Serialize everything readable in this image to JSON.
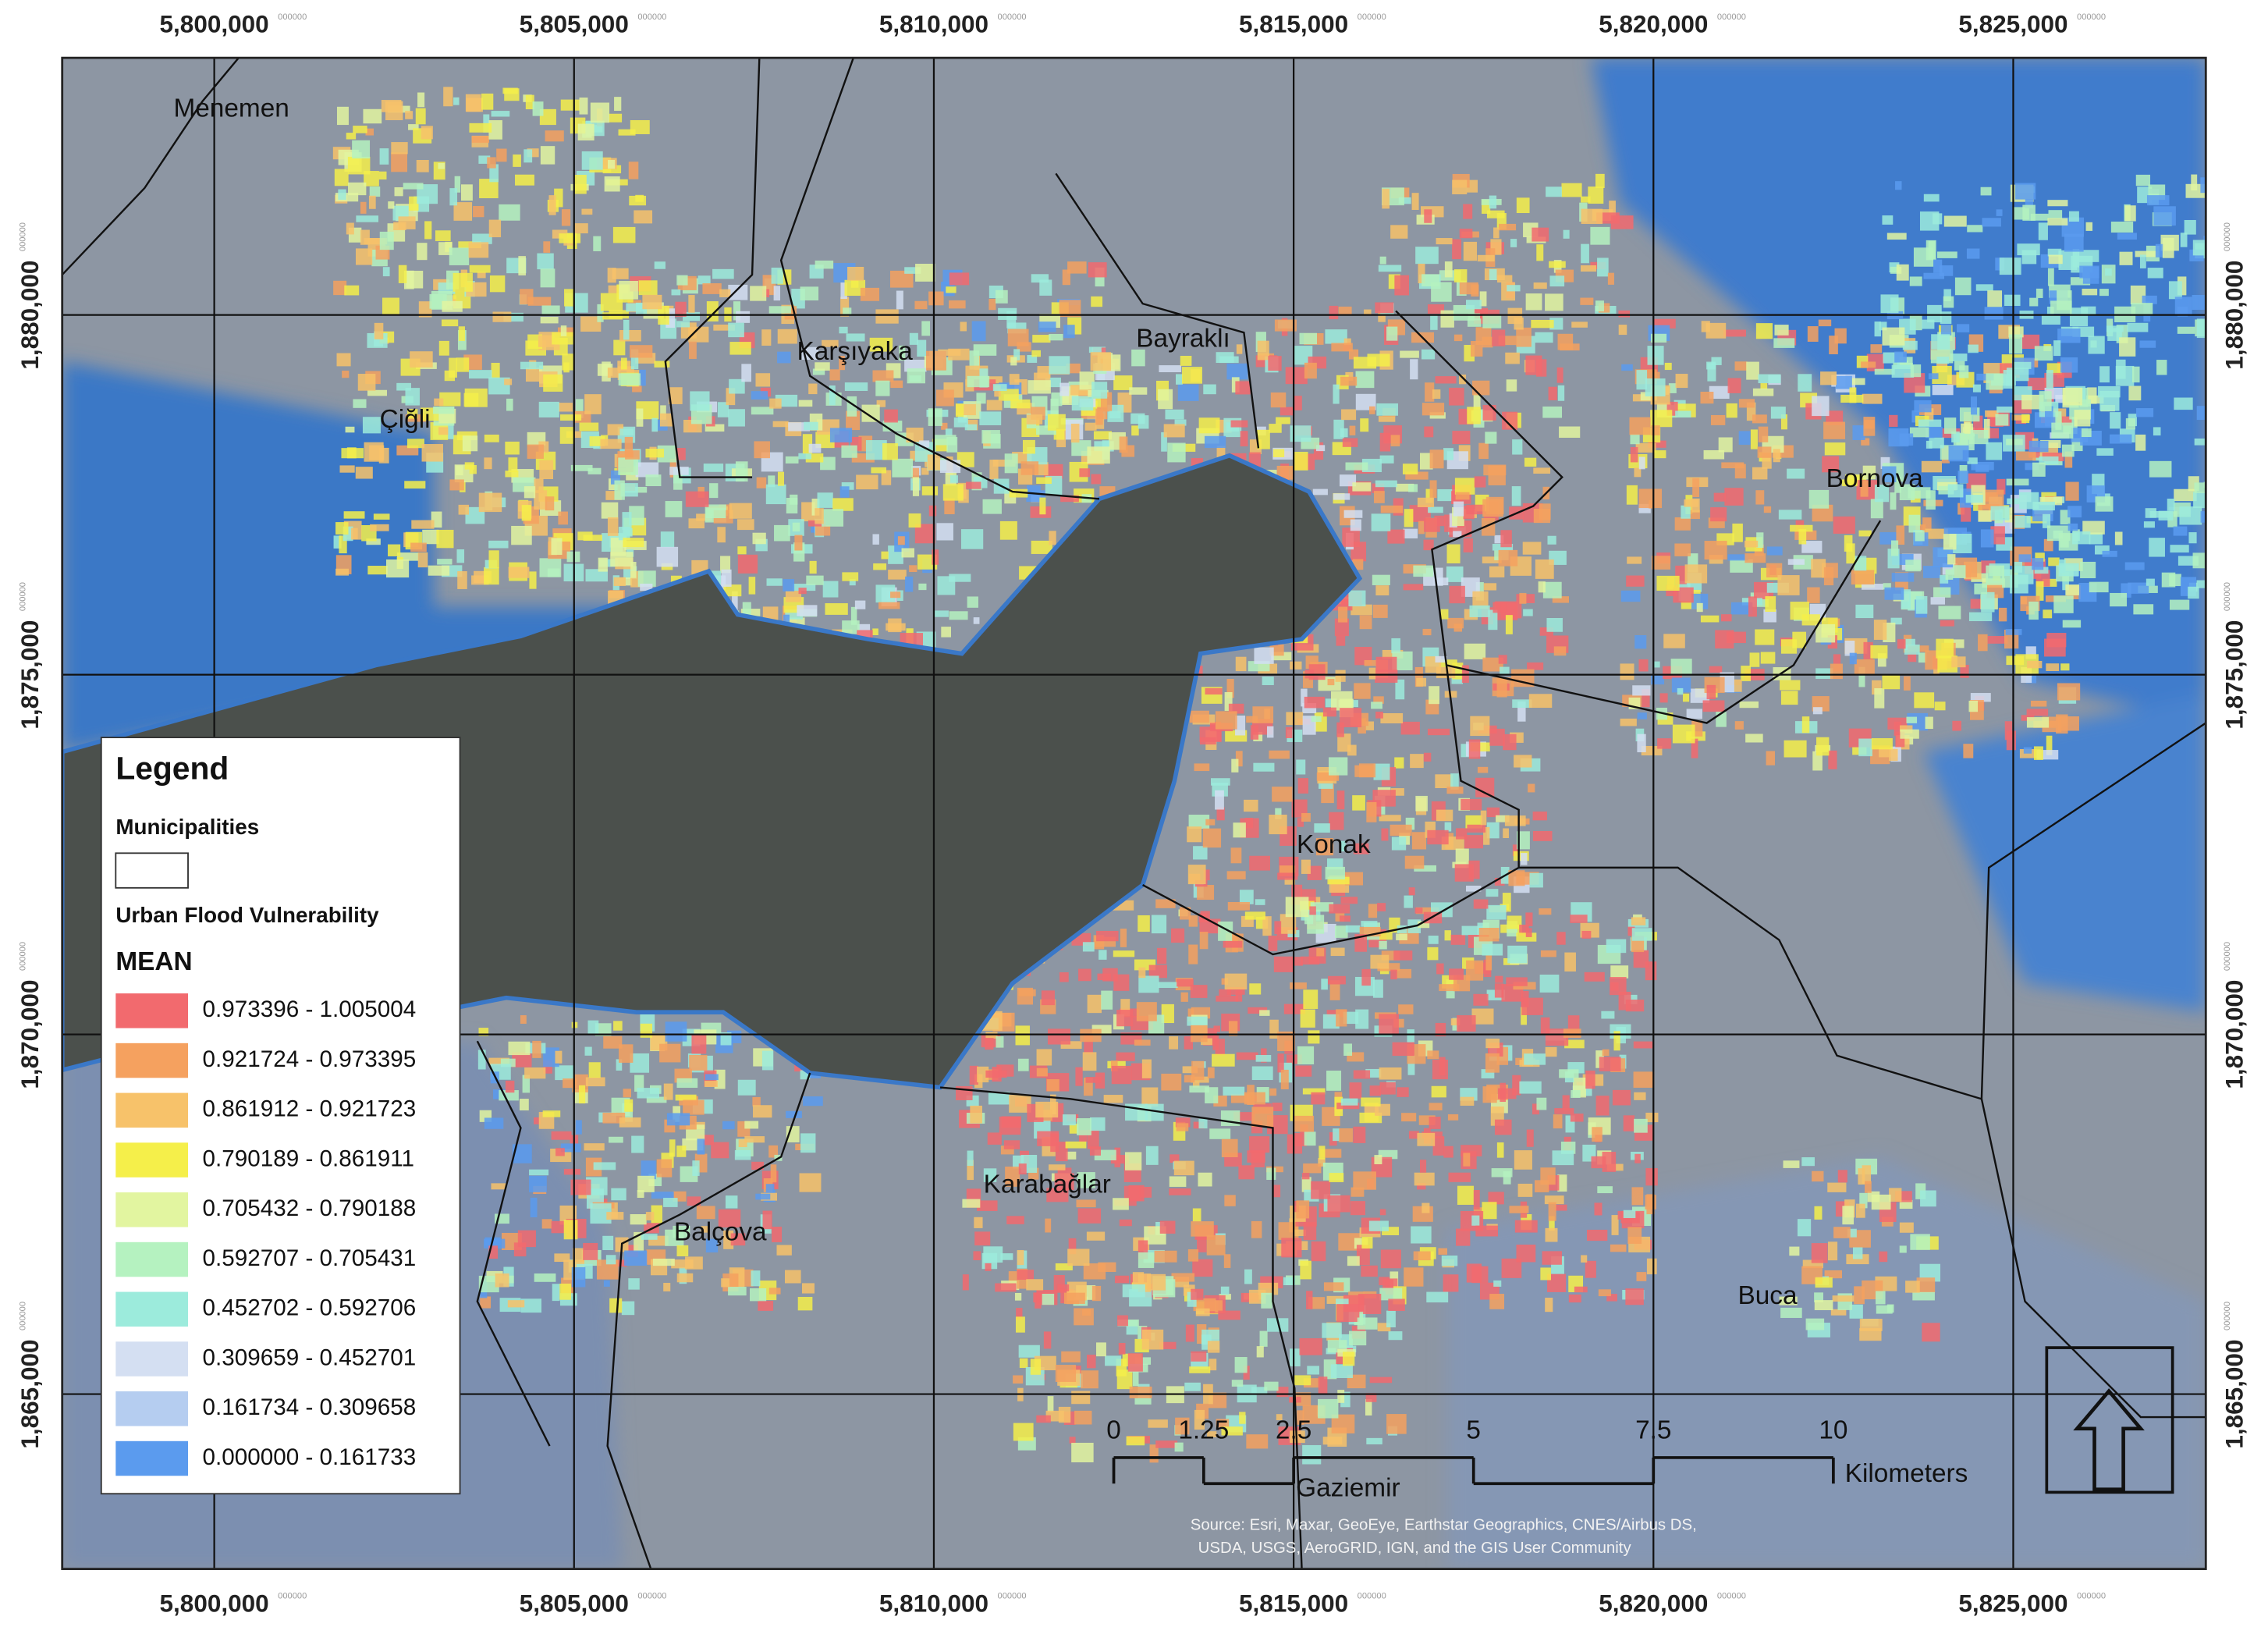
{
  "map": {
    "grid": {
      "xlim": [
        5797887,
        5827676
      ],
      "ylim": [
        1862570,
        1883574
      ],
      "xticks": [
        {
          "value": 5800000,
          "label": "5,800,000"
        },
        {
          "value": 5805000,
          "label": "5,805,000"
        },
        {
          "value": 5810000,
          "label": "5,810,000"
        },
        {
          "value": 5815000,
          "label": "5,815,000"
        },
        {
          "value": 5820000,
          "label": "5,820,000"
        },
        {
          "value": 5825000,
          "label": "5,825,000"
        }
      ],
      "yticks": [
        {
          "value": 1880000,
          "label": "1,880,000"
        },
        {
          "value": 1875000,
          "label": "1,875,000"
        },
        {
          "value": 1870000,
          "label": "1,870,000"
        },
        {
          "value": 1865000,
          "label": "1,865,000"
        }
      ],
      "tick_suffix": "000000"
    },
    "places": [
      "Menemen",
      "Çiğli",
      "Karşıyaka",
      "Bayraklı",
      "Bornova",
      "Konak",
      "Karabağlar",
      "Balçova",
      "Buca",
      "Gaziemir"
    ],
    "legend": {
      "title": "Legend",
      "boundary_label": "Municipalities",
      "layer": "Urban Flood Vulnerability",
      "field": "MEAN",
      "classes": [
        {
          "label": "0.973396 - 1.005004",
          "color": "#f26a6e"
        },
        {
          "label": "0.921724 - 0.973395",
          "color": "#f5a15f"
        },
        {
          "label": "0.861912 - 0.921723",
          "color": "#f7c26a"
        },
        {
          "label": "0.790189 - 0.861911",
          "color": "#f5ef4a"
        },
        {
          "label": "0.705432 - 0.790188",
          "color": "#e2f5a0"
        },
        {
          "label": "0.592707 - 0.705431",
          "color": "#b5f2c0"
        },
        {
          "label": "0.452702 - 0.592706",
          "color": "#9cebdc"
        },
        {
          "label": "0.309659 - 0.452701",
          "color": "#d4dff2"
        },
        {
          "label": "0.161734 - 0.309658",
          "color": "#b5cdf0"
        },
        {
          "label": "0.000000 - 0.161733",
          "color": "#5b9bee"
        }
      ]
    },
    "scale_bar": {
      "ticks": [
        0,
        1.25,
        2.5,
        5,
        7.5,
        10
      ],
      "unit": "Kilometers"
    },
    "source": [
      "Source: Esri, Maxar, GeoEye, Earthstar Geographics, CNES/Airbus DS,",
      "USDA, USGS, AeroGRID, IGN, and the GIS User Community"
    ]
  }
}
